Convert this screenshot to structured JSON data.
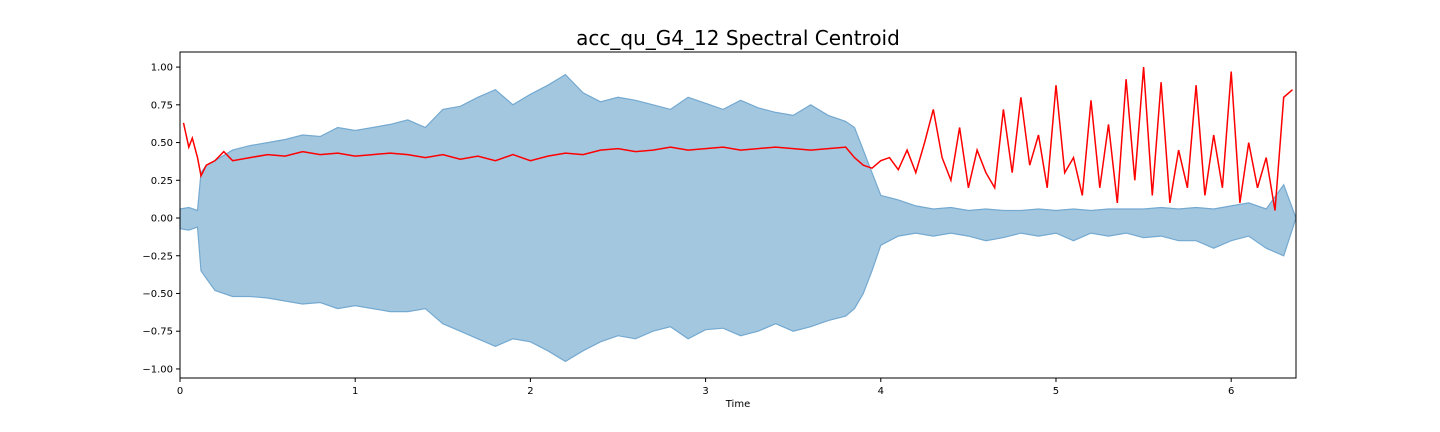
{
  "chart_data": {
    "type": "line",
    "title": "acc_qu_G4_12 Spectral Centroid",
    "xlabel": "Time",
    "ylabel": "",
    "xlim": [
      0,
      6.37
    ],
    "ylim": [
      -1.06,
      1.1
    ],
    "x_ticks": [
      0,
      1,
      2,
      3,
      4,
      5,
      6
    ],
    "y_ticks": [
      -1.0,
      -0.75,
      -0.5,
      -0.25,
      0.0,
      0.25,
      0.5,
      0.75,
      1.0
    ],
    "y_tick_labels": [
      "−1.00",
      "−0.75",
      "−0.50",
      "−0.25",
      "0.00",
      "0.25",
      "0.50",
      "0.75",
      "1.00"
    ],
    "grid": false,
    "colors": {
      "waveform_fill": "#a4c7e0",
      "waveform_edge": "#74a9d0",
      "centroid": "#ff0000"
    },
    "series": [
      {
        "kind": "waveform-envelope",
        "x": [
          0.0,
          0.05,
          0.1,
          0.12,
          0.15,
          0.2,
          0.3,
          0.4,
          0.5,
          0.6,
          0.7,
          0.8,
          0.9,
          1.0,
          1.1,
          1.2,
          1.3,
          1.4,
          1.5,
          1.6,
          1.7,
          1.8,
          1.9,
          2.0,
          2.1,
          2.2,
          2.3,
          2.4,
          2.5,
          2.6,
          2.7,
          2.8,
          2.9,
          3.0,
          3.1,
          3.2,
          3.3,
          3.4,
          3.5,
          3.6,
          3.7,
          3.8,
          3.85,
          3.9,
          3.95,
          4.0,
          4.1,
          4.2,
          4.3,
          4.4,
          4.5,
          4.6,
          4.7,
          4.8,
          4.9,
          5.0,
          5.1,
          5.2,
          5.3,
          5.4,
          5.5,
          5.6,
          5.7,
          5.8,
          5.9,
          6.0,
          6.1,
          6.2,
          6.3,
          6.37
        ],
        "upper": [
          0.06,
          0.07,
          0.05,
          0.3,
          0.35,
          0.38,
          0.45,
          0.48,
          0.5,
          0.52,
          0.55,
          0.54,
          0.6,
          0.58,
          0.6,
          0.62,
          0.65,
          0.6,
          0.72,
          0.74,
          0.8,
          0.85,
          0.75,
          0.82,
          0.88,
          0.95,
          0.83,
          0.77,
          0.8,
          0.78,
          0.75,
          0.72,
          0.8,
          0.76,
          0.72,
          0.78,
          0.73,
          0.7,
          0.68,
          0.75,
          0.68,
          0.64,
          0.6,
          0.45,
          0.3,
          0.15,
          0.12,
          0.08,
          0.06,
          0.07,
          0.05,
          0.06,
          0.05,
          0.05,
          0.06,
          0.05,
          0.06,
          0.05,
          0.06,
          0.06,
          0.06,
          0.07,
          0.06,
          0.07,
          0.06,
          0.08,
          0.1,
          0.06,
          0.22,
          0.0
        ],
        "lower": [
          -0.07,
          -0.08,
          -0.06,
          -0.35,
          -0.4,
          -0.48,
          -0.52,
          -0.52,
          -0.53,
          -0.55,
          -0.57,
          -0.56,
          -0.6,
          -0.58,
          -0.6,
          -0.62,
          -0.62,
          -0.6,
          -0.7,
          -0.75,
          -0.8,
          -0.85,
          -0.8,
          -0.82,
          -0.88,
          -0.95,
          -0.88,
          -0.82,
          -0.78,
          -0.8,
          -0.75,
          -0.72,
          -0.8,
          -0.74,
          -0.73,
          -0.78,
          -0.75,
          -0.7,
          -0.75,
          -0.72,
          -0.68,
          -0.65,
          -0.6,
          -0.5,
          -0.35,
          -0.18,
          -0.12,
          -0.1,
          -0.12,
          -0.1,
          -0.12,
          -0.15,
          -0.13,
          -0.1,
          -0.12,
          -0.1,
          -0.15,
          -0.1,
          -0.12,
          -0.1,
          -0.13,
          -0.12,
          -0.15,
          -0.15,
          -0.2,
          -0.15,
          -0.12,
          -0.2,
          -0.25,
          0.0
        ]
      },
      {
        "kind": "spectral-centroid",
        "x": [
          0.02,
          0.05,
          0.07,
          0.1,
          0.12,
          0.15,
          0.2,
          0.25,
          0.3,
          0.4,
          0.5,
          0.6,
          0.7,
          0.8,
          0.9,
          1.0,
          1.1,
          1.2,
          1.3,
          1.4,
          1.5,
          1.6,
          1.7,
          1.8,
          1.9,
          2.0,
          2.1,
          2.2,
          2.3,
          2.4,
          2.5,
          2.6,
          2.7,
          2.8,
          2.9,
          3.0,
          3.1,
          3.2,
          3.3,
          3.4,
          3.5,
          3.6,
          3.7,
          3.8,
          3.85,
          3.9,
          3.95,
          4.0,
          4.05,
          4.1,
          4.15,
          4.2,
          4.25,
          4.3,
          4.35,
          4.4,
          4.45,
          4.5,
          4.55,
          4.6,
          4.65,
          4.7,
          4.75,
          4.8,
          4.85,
          4.9,
          4.95,
          5.0,
          5.05,
          5.1,
          5.15,
          5.2,
          5.25,
          5.3,
          5.35,
          5.4,
          5.45,
          5.5,
          5.55,
          5.6,
          5.65,
          5.7,
          5.75,
          5.8,
          5.85,
          5.9,
          5.95,
          6.0,
          6.05,
          6.1,
          6.15,
          6.2,
          6.25,
          6.3,
          6.35
        ],
        "values": [
          0.63,
          0.47,
          0.53,
          0.4,
          0.28,
          0.35,
          0.38,
          0.44,
          0.38,
          0.4,
          0.42,
          0.41,
          0.44,
          0.42,
          0.43,
          0.41,
          0.42,
          0.43,
          0.42,
          0.4,
          0.42,
          0.39,
          0.41,
          0.38,
          0.42,
          0.38,
          0.41,
          0.43,
          0.42,
          0.45,
          0.46,
          0.44,
          0.45,
          0.47,
          0.45,
          0.46,
          0.47,
          0.45,
          0.46,
          0.47,
          0.46,
          0.45,
          0.46,
          0.47,
          0.4,
          0.35,
          0.33,
          0.38,
          0.4,
          0.32,
          0.45,
          0.3,
          0.5,
          0.72,
          0.4,
          0.25,
          0.6,
          0.2,
          0.45,
          0.3,
          0.2,
          0.72,
          0.3,
          0.8,
          0.35,
          0.55,
          0.2,
          0.88,
          0.3,
          0.4,
          0.15,
          0.78,
          0.2,
          0.62,
          0.1,
          0.92,
          0.25,
          1.0,
          0.15,
          0.9,
          0.1,
          0.45,
          0.2,
          0.88,
          0.15,
          0.55,
          0.2,
          0.97,
          0.1,
          0.5,
          0.2,
          0.4,
          0.05,
          0.8,
          0.85
        ]
      }
    ]
  }
}
